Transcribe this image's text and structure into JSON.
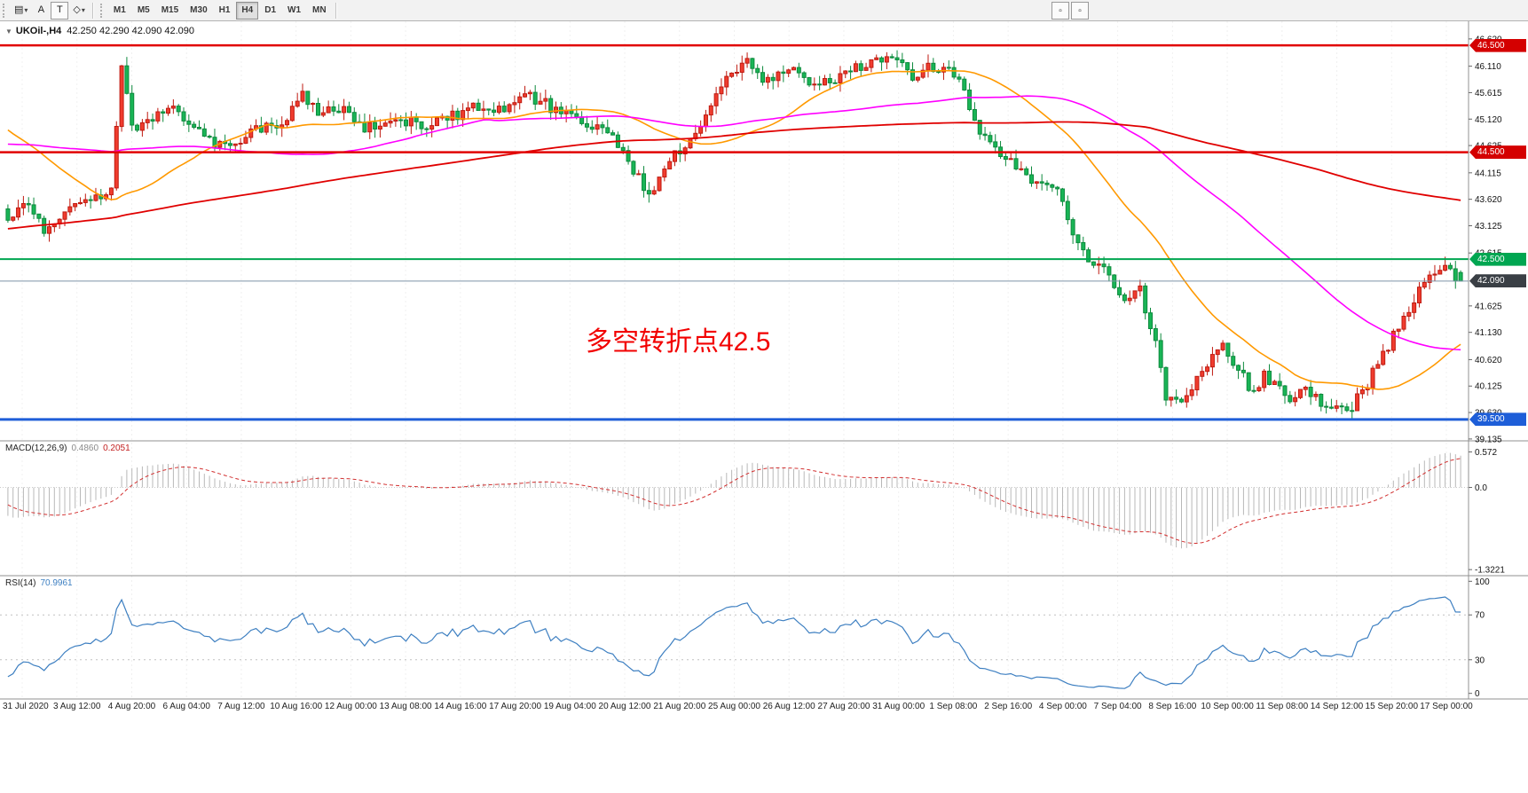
{
  "toolbar": {
    "tools": [
      {
        "id": "chart-list",
        "glyph": "▤",
        "icon_name": "chart-list-icon",
        "dropdown": true
      },
      {
        "id": "cursor",
        "glyph": "A",
        "icon_name": "cursor-a-icon",
        "dropdown": false
      },
      {
        "id": "text",
        "glyph": "T",
        "icon_name": "text-tool-icon",
        "dropdown": false,
        "boxed": true
      },
      {
        "id": "objects",
        "glyph": "◇",
        "icon_name": "draw-objects-icon",
        "dropdown": true
      }
    ],
    "chevron": "▾",
    "timeframes": [
      "M1",
      "M5",
      "M15",
      "M30",
      "H1",
      "H4",
      "D1",
      "W1",
      "MN"
    ],
    "active_timeframe": "H4",
    "extra_buttons": [
      "▫",
      "▫"
    ]
  },
  "chart_header": {
    "collapse_arrow": "▼",
    "symbol": "UKOil-,H4",
    "ohlc": "42.250 42.290 42.090 42.090"
  },
  "macd_panel": {
    "title": "MACD(12,26,9)",
    "value_main": "0.4860",
    "value_signal": "0.2051"
  },
  "rsi_panel": {
    "title": "RSI(14)",
    "value": "70.9961"
  },
  "chart_data": {
    "type": "candlestick",
    "symbol": "UKOil-",
    "timeframe": "H4",
    "ohlc_readout": {
      "open": "42.250",
      "high": "42.290",
      "low": "42.090",
      "close": "42.090"
    },
    "up_color": "#f03c2e",
    "up_stroke": "#bf1a10",
    "down_color": "#19b556",
    "down_stroke": "#0d8a3d",
    "horizontal_levels": [
      {
        "price": 46.5,
        "label": "46.500",
        "color": "#e10000",
        "line_width": 2.5
      },
      {
        "price": 44.5,
        "label": "44.500",
        "color": "#e10000",
        "line_width": 2.5
      },
      {
        "price": 42.5,
        "label": "42.500",
        "color": "#00a651",
        "line_width": 2
      },
      {
        "price": 39.5,
        "label": "39.500",
        "color": "#1e5ed8",
        "line_width": 3
      }
    ],
    "current_price": {
      "value": 42.09,
      "label": "42.090",
      "line_color": "#7d93a8"
    },
    "price_badges": [
      {
        "price": 46.5,
        "text": "46.500",
        "bg": "#d40000"
      },
      {
        "price": 44.5,
        "text": "44.500",
        "bg": "#d40000"
      },
      {
        "price": 42.5,
        "text": "42.500",
        "bg": "#00a651"
      },
      {
        "price": 42.09,
        "text": "42.090",
        "bg": "#3a3f45"
      },
      {
        "price": 39.5,
        "text": "39.500",
        "bg": "#1e5ed8"
      }
    ],
    "price_axis": {
      "ticks": [
        "46.620",
        "46.110",
        "45.615",
        "45.120",
        "44.625",
        "44.115",
        "43.620",
        "43.125",
        "42.615",
        "41.625",
        "41.130",
        "40.620",
        "40.125",
        "39.630",
        "39.135"
      ]
    },
    "moving_averages": [
      {
        "period": 30,
        "color": "#ff9900",
        "width": 1.6,
        "name": "MA-fast-orange"
      },
      {
        "period": 72,
        "color": "#ff00ff",
        "width": 1.6,
        "name": "MA-medium-magenta"
      },
      {
        "period": 200,
        "color": "#e00000",
        "width": 1.8,
        "name": "MA-slow-red"
      }
    ],
    "annotation": {
      "text": "多空转折点42.5",
      "color": "#f20000"
    },
    "visible_candles": 282,
    "lead_in_candles": 200,
    "seed": 12,
    "price_path_lead_in": [
      [
        0,
        41.3
      ],
      [
        50,
        41.9
      ],
      [
        100,
        42.6
      ],
      [
        140,
        44.0
      ],
      [
        170,
        45.4
      ],
      [
        186,
        45.6
      ],
      [
        193,
        44.3
      ],
      [
        200,
        43.3
      ]
    ],
    "price_path": [
      [
        0,
        43.3
      ],
      [
        4,
        43.55
      ],
      [
        7,
        43.0
      ],
      [
        11,
        43.45
      ],
      [
        16,
        43.6
      ],
      [
        20,
        43.85
      ],
      [
        22,
        46.1
      ],
      [
        24,
        44.9
      ],
      [
        27,
        45.15
      ],
      [
        32,
        45.3
      ],
      [
        36,
        44.9
      ],
      [
        43,
        44.55
      ],
      [
        48,
        44.9
      ],
      [
        53,
        45.05
      ],
      [
        57,
        45.6
      ],
      [
        61,
        45.2
      ],
      [
        64,
        45.35
      ],
      [
        69,
        44.95
      ],
      [
        75,
        45.2
      ],
      [
        80,
        44.95
      ],
      [
        85,
        45.15
      ],
      [
        91,
        45.35
      ],
      [
        96,
        45.3
      ],
      [
        101,
        45.55
      ],
      [
        107,
        45.25
      ],
      [
        112,
        45.0
      ],
      [
        117,
        44.85
      ],
      [
        121,
        44.2
      ],
      [
        124,
        43.7
      ],
      [
        128,
        44.35
      ],
      [
        133,
        44.8
      ],
      [
        139,
        45.9
      ],
      [
        143,
        46.3
      ],
      [
        146,
        45.75
      ],
      [
        149,
        45.9
      ],
      [
        152,
        46.15
      ],
      [
        155,
        45.7
      ],
      [
        160,
        45.85
      ],
      [
        165,
        46.1
      ],
      [
        171,
        46.35
      ],
      [
        175,
        45.95
      ],
      [
        178,
        46.1
      ],
      [
        181,
        46.05
      ],
      [
        184,
        45.85
      ],
      [
        187,
        45.0
      ],
      [
        192,
        44.5
      ],
      [
        196,
        44.1
      ],
      [
        199,
        43.9
      ],
      [
        203,
        43.75
      ],
      [
        206,
        43.0
      ],
      [
        209,
        42.4
      ],
      [
        213,
        42.2
      ],
      [
        216,
        41.7
      ],
      [
        219,
        41.9
      ],
      [
        222,
        40.9
      ],
      [
        224,
        39.85
      ],
      [
        227,
        39.75
      ],
      [
        230,
        40.3
      ],
      [
        233,
        40.7
      ],
      [
        235,
        40.85
      ],
      [
        238,
        40.45
      ],
      [
        241,
        40.0
      ],
      [
        243,
        40.3
      ],
      [
        245,
        40.15
      ],
      [
        248,
        39.9
      ],
      [
        251,
        40.1
      ],
      [
        254,
        39.85
      ],
      [
        256,
        39.75
      ],
      [
        259,
        39.65
      ],
      [
        262,
        40.0
      ],
      [
        264,
        40.4
      ],
      [
        267,
        40.9
      ],
      [
        270,
        41.4
      ],
      [
        273,
        41.9
      ],
      [
        276,
        42.3
      ],
      [
        278,
        42.45
      ],
      [
        280,
        42.2
      ],
      [
        281,
        42.09
      ]
    ],
    "time_axis": [
      "31 Jul 2020",
      "3 Aug 12:00",
      "4 Aug 20:00",
      "6 Aug 04:00",
      "7 Aug 12:00",
      "10 Aug 16:00",
      "12 Aug 00:00",
      "13 Aug 08:00",
      "14 Aug 16:00",
      "17 Aug 20:00",
      "19 Aug 04:00",
      "20 Aug 12:00",
      "21 Aug 20:00",
      "25 Aug 00:00",
      "26 Aug 12:00",
      "27 Aug 20:00",
      "31 Aug 00:00",
      "1 Sep 08:00",
      "2 Sep 16:00",
      "4 Sep 00:00",
      "7 Sep 04:00",
      "8 Sep 16:00",
      "10 Sep 00:00",
      "11 Sep 08:00",
      "14 Sep 12:00",
      "15 Sep 20:00",
      "17 Sep 00:00"
    ],
    "macd": {
      "fast": 12,
      "slow": 26,
      "signal": 9,
      "current_main": 0.486,
      "current_signal": 0.2051,
      "hist_color": "#b8b8b8",
      "signal_color": "#d23030",
      "axis_ticks": [
        {
          "t": "0.572",
          "v": 0.572
        },
        {
          "t": "0.0",
          "v": 0.0
        },
        {
          "t": "-1.3221",
          "v": -1.3221
        }
      ]
    },
    "rsi": {
      "period": 14,
      "current": 70.9961,
      "line_color": "#3d7fc1",
      "levels": [
        70,
        30
      ],
      "axis_ticks": [
        {
          "t": "100",
          "v": 100
        },
        {
          "t": "70",
          "v": 70
        },
        {
          "t": "30",
          "v": 30
        },
        {
          "t": "0",
          "v": 0
        }
      ]
    }
  }
}
